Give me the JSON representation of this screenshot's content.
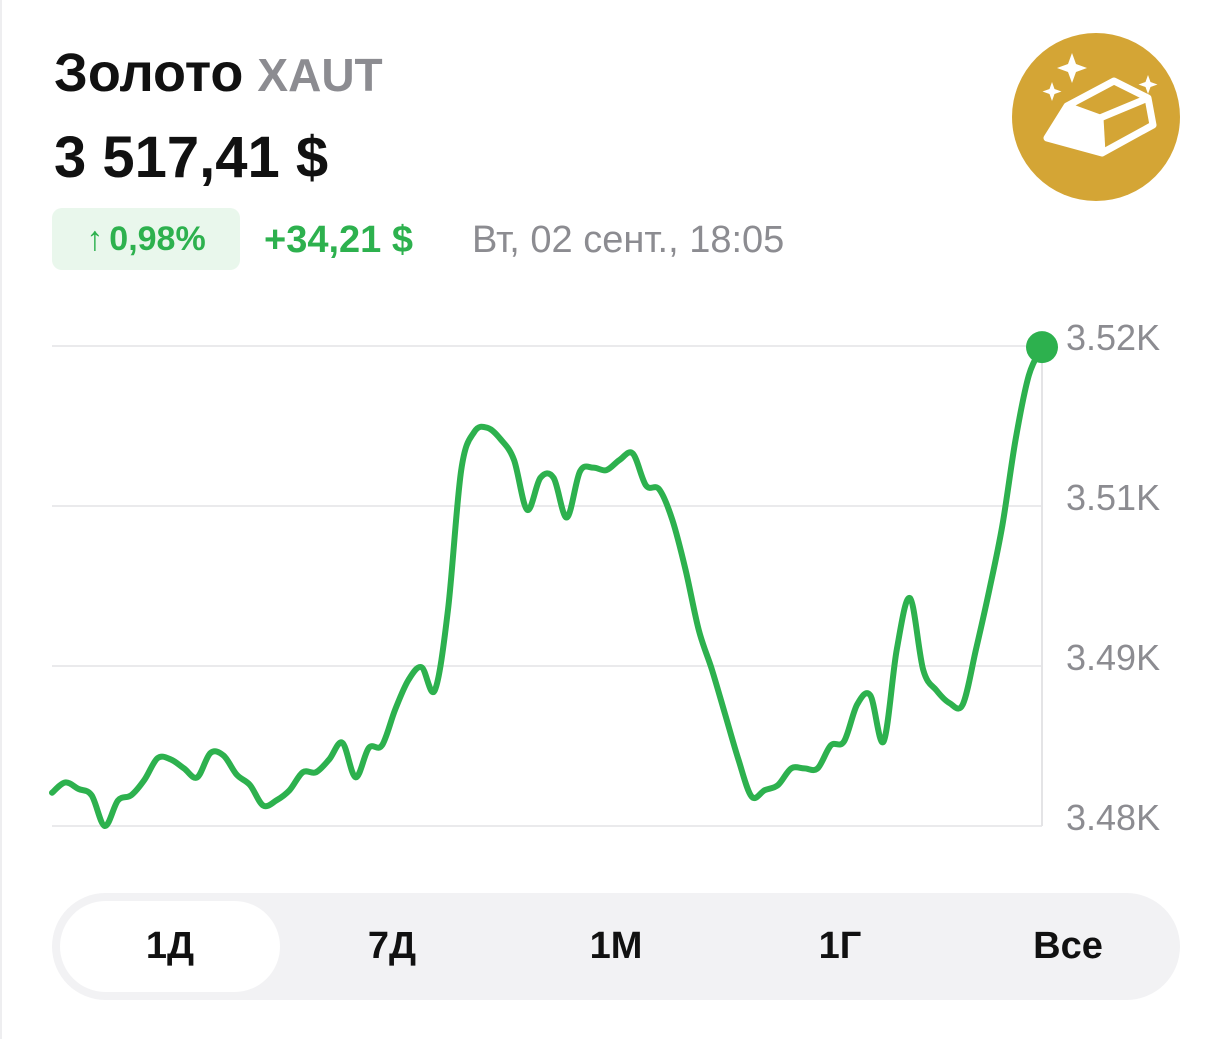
{
  "header": {
    "title": "Золото",
    "ticker": "XAUT",
    "price": "3 517,41 $",
    "change_percent": "0,98%",
    "change_arrow": "↑",
    "change_value": "+34,21 $",
    "timestamp": "Вт, 02 сент., 18:05",
    "icon": "gold-bar-icon"
  },
  "colors": {
    "accent_green": "#2db14e",
    "icon_gold": "#d4a535",
    "muted": "#8c8c91"
  },
  "chart_data": {
    "type": "line",
    "title": "",
    "xlabel": "",
    "ylabel": "",
    "ylim": [
      3480,
      3517.5
    ],
    "y_ticks": [
      {
        "value": 3517.5,
        "label": "3.52K"
      },
      {
        "value": 3505,
        "label": "3.51K"
      },
      {
        "value": 3492.5,
        "label": "3.49K"
      },
      {
        "value": 3480,
        "label": "3.48K"
      }
    ],
    "grid": true,
    "series": [
      {
        "values": [
          3482.6,
          3483.4,
          3482.9,
          3482.4,
          3480.0,
          3482.0,
          3482.4,
          3483.6,
          3485.3,
          3485.2,
          3484.5,
          3483.8,
          3485.7,
          3485.5,
          3484.0,
          3483.2,
          3481.6,
          3482.0,
          3482.8,
          3484.2,
          3484.2,
          3485.2,
          3486.5,
          3483.8,
          3486.1,
          3486.3,
          3489.1,
          3491.4,
          3492.4,
          3490.6,
          3496.9,
          3507.8,
          3510.8,
          3511.1,
          3510.2,
          3508.6,
          3504.7,
          3507.2,
          3507.2,
          3504.1,
          3507.7,
          3508.0,
          3507.8,
          3508.6,
          3509.1,
          3506.6,
          3506.3,
          3503.9,
          3500.0,
          3495.3,
          3492.2,
          3488.7,
          3485.2,
          3482.3,
          3482.8,
          3483.2,
          3484.5,
          3484.5,
          3484.5,
          3486.3,
          3486.6,
          3489.5,
          3490.2,
          3486.6,
          3493.8,
          3497.8,
          3492.2,
          3490.6,
          3489.6,
          3489.5,
          3493.8,
          3498.4,
          3503.5,
          3510.2,
          3515.2,
          3517.41
        ]
      }
    ],
    "last_value": 3517.41
  },
  "periods": [
    {
      "label": "1Д",
      "selected": true
    },
    {
      "label": "7Д",
      "selected": false
    },
    {
      "label": "1М",
      "selected": false
    },
    {
      "label": "1Г",
      "selected": false
    },
    {
      "label": "Все",
      "selected": false
    }
  ]
}
